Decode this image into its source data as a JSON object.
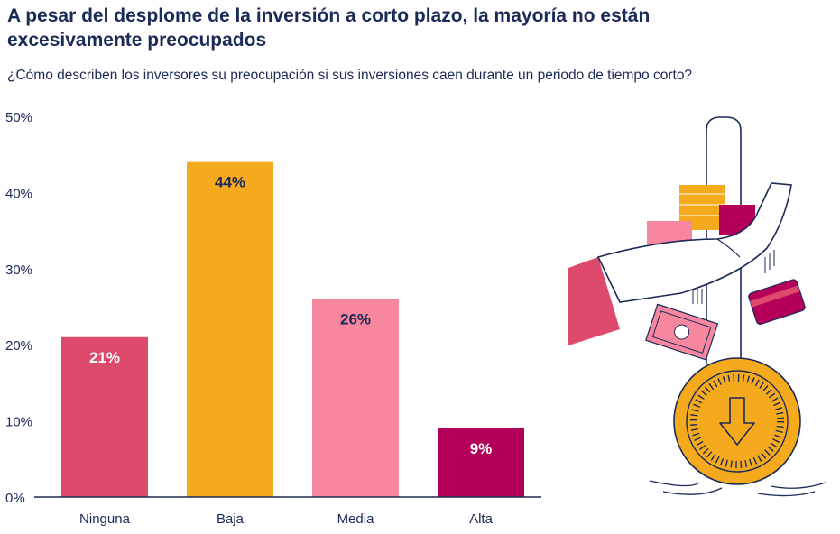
{
  "title": "A pesar del desplome de la inversión a corto plazo, la mayoría no están excesivamente preocupados",
  "subtitle": "¿Cómo describen los inversores su preocupación si sus inversiones caen durante un periodo de tiempo corto?",
  "colors": {
    "text": "#1b2a57",
    "axis": "#1b2a57",
    "bar_label_light": "#ffffff",
    "bar_label_dark": "#1b2a57"
  },
  "chart_data": {
    "type": "bar",
    "title": "",
    "xlabel": "",
    "ylabel": "",
    "ylim": [
      0,
      50
    ],
    "yticks": [
      0,
      10,
      20,
      30,
      40,
      50
    ],
    "ytick_labels": [
      "0%",
      "10%",
      "20%",
      "30%",
      "40%",
      "50%"
    ],
    "grid": false,
    "categories": [
      "Ninguna",
      "Baja",
      "Media",
      "Alta"
    ],
    "values": [
      21,
      44,
      26,
      9
    ],
    "data_labels": [
      "21%",
      "44%",
      "26%",
      "9%"
    ],
    "bar_colors": [
      "#dd4a6b",
      "#f5a91d",
      "#f6879f",
      "#b5005a"
    ],
    "label_colors": [
      "#ffffff",
      "#1b2a57",
      "#1b2a57",
      "#ffffff"
    ]
  }
}
